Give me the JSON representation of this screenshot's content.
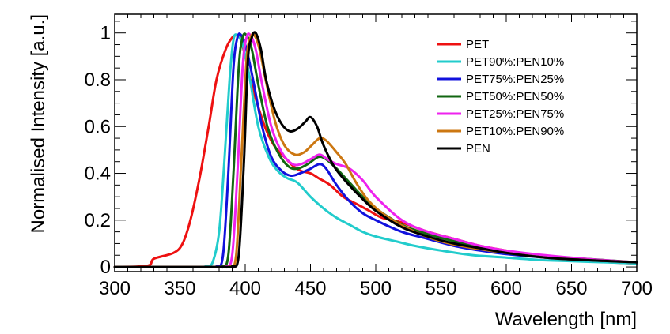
{
  "chart_data": {
    "type": "line",
    "title": "",
    "xlabel": "Wavelength [nm]",
    "ylabel": "Normalised Intensity [a.u.]",
    "xlim": [
      300,
      700
    ],
    "ylim": [
      -0.02,
      1.08
    ],
    "xticks": [
      300,
      350,
      400,
      450,
      500,
      550,
      600,
      650,
      700
    ],
    "xtick_labels": [
      "300",
      "350",
      "400",
      "450",
      "500",
      "550",
      "600",
      "650",
      "700"
    ],
    "yticks": [
      0,
      0.2,
      0.4,
      0.6,
      0.8,
      1
    ],
    "ytick_labels": [
      "0",
      "0.2",
      "0.4",
      "0.6",
      "0.8",
      "1"
    ],
    "grid": false,
    "legend_position": "top-right",
    "series": [
      {
        "name": "PET",
        "color": "#ee1111",
        "x": [
          300,
          325,
          330,
          345,
          352,
          358,
          365,
          372,
          378,
          385,
          390,
          393,
          396,
          400,
          403,
          408,
          415,
          422,
          430,
          437,
          443,
          450,
          456,
          465,
          475,
          485,
          495,
          505,
          520,
          540,
          560,
          580,
          600,
          620,
          640,
          660,
          680,
          700
        ],
        "y": [
          0,
          0.005,
          0.035,
          0.06,
          0.1,
          0.2,
          0.38,
          0.6,
          0.8,
          0.93,
          0.98,
          0.99,
          0.98,
          0.9,
          0.82,
          0.72,
          0.6,
          0.52,
          0.47,
          0.43,
          0.41,
          0.4,
          0.38,
          0.35,
          0.3,
          0.27,
          0.24,
          0.21,
          0.19,
          0.15,
          0.12,
          0.09,
          0.07,
          0.05,
          0.04,
          0.03,
          0.02,
          0.015
        ]
      },
      {
        "name": "PET90%:PEN10%",
        "color": "#22cccc",
        "x": [
          300,
          360,
          370,
          375,
          380,
          384,
          388,
          391,
          394,
          398,
          403,
          410,
          418,
          425,
          432,
          440,
          450,
          460,
          470,
          480,
          490,
          500,
          515,
          530,
          550,
          575,
          600,
          625,
          650,
          675,
          700
        ],
        "y": [
          0,
          0,
          0.003,
          0.02,
          0.15,
          0.45,
          0.8,
          0.97,
          0.99,
          0.95,
          0.82,
          0.6,
          0.47,
          0.41,
          0.38,
          0.36,
          0.3,
          0.25,
          0.21,
          0.18,
          0.15,
          0.13,
          0.11,
          0.09,
          0.07,
          0.05,
          0.04,
          0.03,
          0.025,
          0.02,
          0.015
        ]
      },
      {
        "name": "PET75%:PEN25%",
        "color": "#1111dd",
        "x": [
          300,
          370,
          378,
          383,
          387,
          391,
          394,
          397,
          401,
          406,
          413,
          420,
          428,
          435,
          442,
          450,
          457,
          462,
          470,
          480,
          490,
          500,
          520,
          540,
          560,
          580,
          600,
          630,
          660,
          700
        ],
        "y": [
          0,
          0,
          0.003,
          0.05,
          0.4,
          0.85,
          0.98,
          0.99,
          0.93,
          0.8,
          0.6,
          0.47,
          0.41,
          0.39,
          0.4,
          0.42,
          0.44,
          0.42,
          0.35,
          0.28,
          0.23,
          0.2,
          0.15,
          0.12,
          0.09,
          0.07,
          0.055,
          0.04,
          0.03,
          0.02
        ]
      },
      {
        "name": "PET50%:PEN50%",
        "color": "#116611",
        "x": [
          300,
          375,
          382,
          387,
          391,
          395,
          398,
          401,
          405,
          410,
          417,
          425,
          433,
          440,
          448,
          456,
          462,
          470,
          480,
          490,
          500,
          520,
          540,
          560,
          580,
          600,
          630,
          660,
          700
        ],
        "y": [
          0,
          0,
          0.003,
          0.05,
          0.4,
          0.85,
          0.98,
          0.99,
          0.93,
          0.78,
          0.6,
          0.49,
          0.43,
          0.42,
          0.44,
          0.47,
          0.46,
          0.42,
          0.36,
          0.3,
          0.25,
          0.18,
          0.14,
          0.11,
          0.085,
          0.065,
          0.045,
          0.035,
          0.02
        ]
      },
      {
        "name": "PET25%:PEN75%",
        "color": "#ee22ee",
        "x": [
          300,
          378,
          385,
          390,
          394,
          398,
          401,
          404,
          408,
          413,
          420,
          428,
          436,
          443,
          450,
          457,
          463,
          470,
          480,
          490,
          500,
          520,
          540,
          560,
          580,
          600,
          630,
          660,
          700
        ],
        "y": [
          0,
          0,
          0.003,
          0.05,
          0.4,
          0.85,
          0.98,
          0.99,
          0.93,
          0.78,
          0.6,
          0.49,
          0.44,
          0.44,
          0.46,
          0.48,
          0.46,
          0.44,
          0.42,
          0.37,
          0.3,
          0.2,
          0.15,
          0.12,
          0.09,
          0.07,
          0.05,
          0.035,
          0.02
        ]
      },
      {
        "name": "PET10%:PEN90%",
        "color": "#cc7711",
        "x": [
          300,
          380,
          388,
          393,
          397,
          401,
          404,
          407,
          411,
          416,
          423,
          430,
          438,
          445,
          451,
          457,
          462,
          470,
          477,
          485,
          495,
          510,
          530,
          550,
          570,
          600,
          630,
          660,
          700
        ],
        "y": [
          0,
          0,
          0.003,
          0.05,
          0.45,
          0.88,
          0.98,
          0.99,
          0.93,
          0.79,
          0.62,
          0.52,
          0.48,
          0.49,
          0.52,
          0.55,
          0.54,
          0.49,
          0.44,
          0.36,
          0.28,
          0.21,
          0.15,
          0.11,
          0.085,
          0.06,
          0.04,
          0.03,
          0.02
        ]
      },
      {
        "name": "PEN",
        "color": "#000000",
        "x": [
          300,
          383,
          390,
          395,
          399,
          402,
          405,
          408,
          412,
          416,
          422,
          428,
          434,
          440,
          446,
          450,
          455,
          460,
          468,
          478,
          490,
          500,
          520,
          540,
          560,
          580,
          600,
          630,
          660,
          700
        ],
        "y": [
          0,
          0,
          0.003,
          0.05,
          0.45,
          0.88,
          0.98,
          1.0,
          0.93,
          0.8,
          0.68,
          0.61,
          0.58,
          0.59,
          0.62,
          0.64,
          0.6,
          0.52,
          0.43,
          0.36,
          0.29,
          0.24,
          0.17,
          0.13,
          0.1,
          0.08,
          0.06,
          0.04,
          0.03,
          0.02
        ]
      }
    ]
  }
}
